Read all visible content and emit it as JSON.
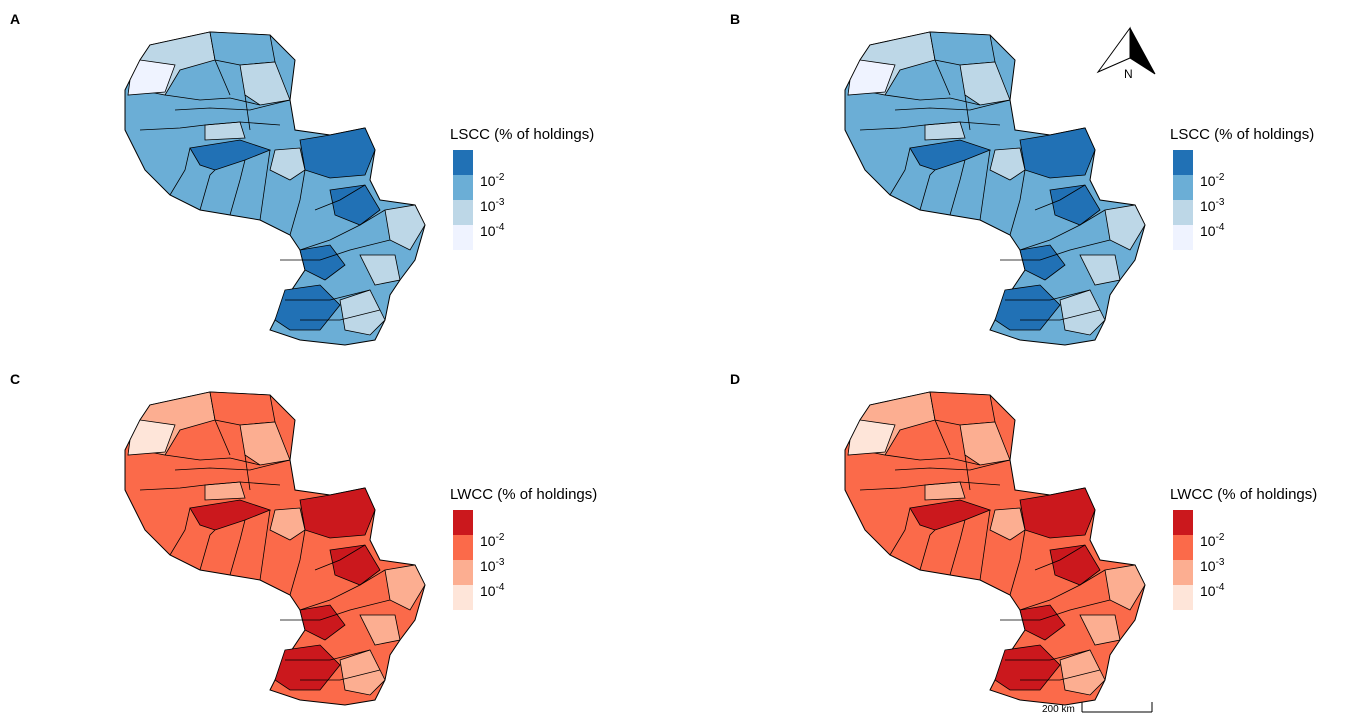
{
  "panels": [
    {
      "label": "A",
      "legend_title": "LSCC (% of holdings)",
      "legend_labels": [
        {
          "base": "10",
          "exponent": "-2"
        },
        {
          "base": "10",
          "exponent": "-3"
        },
        {
          "base": "10",
          "exponent": "-4"
        }
      ],
      "colors": [
        "#2171b5",
        "#6baed6",
        "#bdd7e7",
        "#eff3ff"
      ]
    },
    {
      "label": "B",
      "legend_title": "LSCC (% of holdings)",
      "legend_labels": [
        {
          "base": "10",
          "exponent": "-2"
        },
        {
          "base": "10",
          "exponent": "-3"
        },
        {
          "base": "10",
          "exponent": "-4"
        }
      ],
      "colors": [
        "#2171b5",
        "#6baed6",
        "#bdd7e7",
        "#eff3ff"
      ]
    },
    {
      "label": "C",
      "legend_title": "LWCC (% of holdings)",
      "legend_labels": [
        {
          "base": "10",
          "exponent": "-2"
        },
        {
          "base": "10",
          "exponent": "-3"
        },
        {
          "base": "10",
          "exponent": "-4"
        }
      ],
      "colors": [
        "#cb181d",
        "#fb6a4a",
        "#fcae91",
        "#fee5d9"
      ]
    },
    {
      "label": "D",
      "legend_title": "LWCC (% of holdings)",
      "legend_labels": [
        {
          "base": "10",
          "exponent": "-2"
        },
        {
          "base": "10",
          "exponent": "-3"
        },
        {
          "base": "10",
          "exponent": "-4"
        }
      ],
      "colors": [
        "#cb181d",
        "#fb6a4a",
        "#fcae91",
        "#fee5d9"
      ]
    }
  ],
  "north_arrow": "N",
  "scale_bar": "200 km"
}
